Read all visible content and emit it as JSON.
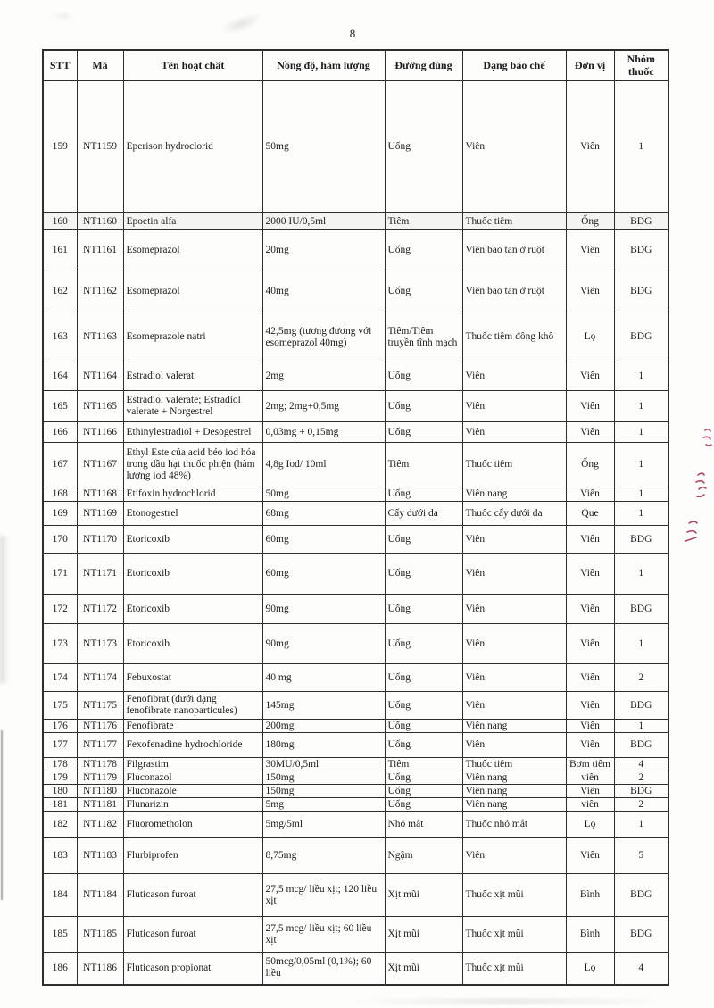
{
  "page": {
    "number": "8"
  },
  "annotations": {
    "margin_note": "illegible red handwritten pen marks",
    "red_color": "#b0436b"
  },
  "table": {
    "headers": [
      "STT",
      "Mã",
      "Tên hoạt chất",
      "Nồng độ, hàm lượng",
      "Đường dùng",
      "Dạng bào chế",
      "Đơn vị",
      "Nhóm thuốc"
    ],
    "rows": [
      {
        "stt": "159",
        "code": "NT1159",
        "name": "Eperison hydroclorid",
        "strength": "50mg",
        "route": "Uống",
        "form": "Viên",
        "unit": "Viên",
        "group": "1"
      },
      {
        "stt": "160",
        "code": "NT1160",
        "name": "Epoetin alfa",
        "strength": "2000 IU/0,5ml",
        "route": "Tiêm",
        "form": "Thuốc tiêm",
        "unit": "Ống",
        "group": "BDG"
      },
      {
        "stt": "161",
        "code": "NT1161",
        "name": "Esomeprazol",
        "strength": "20mg",
        "route": "Uống",
        "form": "Viên bao tan ở ruột",
        "unit": "Viên",
        "group": "BDG"
      },
      {
        "stt": "162",
        "code": "NT1162",
        "name": "Esomeprazol",
        "strength": "40mg",
        "route": "Uống",
        "form": "Viên bao tan ở ruột",
        "unit": "Viên",
        "group": "BDG"
      },
      {
        "stt": "163",
        "code": "NT1163",
        "name": "Esomeprazole natri",
        "strength": "42,5mg (tương đương với esomeprazol 40mg)",
        "route": "Tiêm/Tiêm truyền tĩnh mạch",
        "form": "Thuốc tiêm đông khô",
        "unit": "Lọ",
        "group": "BDG"
      },
      {
        "stt": "164",
        "code": "NT1164",
        "name": "Estradiol valerat",
        "strength": "2mg",
        "route": "Uống",
        "form": "Viên",
        "unit": "Viên",
        "group": "1"
      },
      {
        "stt": "165",
        "code": "NT1165",
        "name": "Estradiol valerate; Estradiol valerate + Norgestrel",
        "strength": "2mg; 2mg+0,5mg",
        "route": "Uống",
        "form": "Viên",
        "unit": "Viên",
        "group": "1"
      },
      {
        "stt": "166",
        "code": "NT1166",
        "name": "Ethinylestradiol + Desogestrel",
        "strength": "0,03mg + 0,15mg",
        "route": "Uống",
        "form": "Viên",
        "unit": "Viên",
        "group": "1"
      },
      {
        "stt": "167",
        "code": "NT1167",
        "name": "Ethyl Este của acid béo iod hóa trong dầu hạt thuốc phiện (hàm lượng iod 48%)",
        "strength": "4,8g Iod/ 10ml",
        "route": "Tiêm",
        "form": "Thuốc tiêm",
        "unit": "Ống",
        "group": "1"
      },
      {
        "stt": "168",
        "code": "NT1168",
        "name": "Etifoxin hydrochlorid",
        "strength": "50mg",
        "route": "Uống",
        "form": "Viên nang",
        "unit": "Viên",
        "group": "1"
      },
      {
        "stt": "169",
        "code": "NT1169",
        "name": "Etonogestrel",
        "strength": "68mg",
        "route": "Cấy dưới da",
        "form": "Thuốc cấy dưới da",
        "unit": "Que",
        "group": "1"
      },
      {
        "stt": "170",
        "code": "NT1170",
        "name": "Etoricoxib",
        "strength": "60mg",
        "route": "Uống",
        "form": "Viên",
        "unit": "Viên",
        "group": "BDG"
      },
      {
        "stt": "171",
        "code": "NT1171",
        "name": "Etoricoxib",
        "strength": "60mg",
        "route": "Uống",
        "form": "Viên",
        "unit": "Viên",
        "group": "1"
      },
      {
        "stt": "172",
        "code": "NT1172",
        "name": "Etoricoxib",
        "strength": "90mg",
        "route": "Uống",
        "form": "Viên",
        "unit": "Viên",
        "group": "BDG"
      },
      {
        "stt": "173",
        "code": "NT1173",
        "name": "Etoricoxib",
        "strength": "90mg",
        "route": "Uống",
        "form": "Viên",
        "unit": "Viên",
        "group": "1"
      },
      {
        "stt": "174",
        "code": "NT1174",
        "name": "Febuxostat",
        "strength": "40 mg",
        "route": "Uống",
        "form": "Viên",
        "unit": "Viên",
        "group": "2"
      },
      {
        "stt": "175",
        "code": "NT1175",
        "name": "Fenofibrat (dưới dạng fenofibrate nanoparticules)",
        "strength": "145mg",
        "route": "Uống",
        "form": "Viên",
        "unit": "Viên",
        "group": "BDG"
      },
      {
        "stt": "176",
        "code": "NT1176",
        "name": "Fenofibrate",
        "strength": "200mg",
        "route": "Uống",
        "form": "Viên nang",
        "unit": "Viên",
        "group": "1"
      },
      {
        "stt": "177",
        "code": "NT1177",
        "name": "Fexofenadine hydrochloride",
        "strength": "180mg",
        "route": "Uống",
        "form": "Viên",
        "unit": "Viên",
        "group": "BDG"
      },
      {
        "stt": "178",
        "code": "NT1178",
        "name": "Filgrastim",
        "strength": "30MU/0,5ml",
        "route": "Tiêm",
        "form": "Thuốc tiêm",
        "unit": "Bơm tiêm",
        "group": "4"
      },
      {
        "stt": "179",
        "code": "NT1179",
        "name": "Fluconazol",
        "strength": "150mg",
        "route": "Uống",
        "form": "Viên nang",
        "unit": "viên",
        "group": "2"
      },
      {
        "stt": "180",
        "code": "NT1180",
        "name": "Fluconazole",
        "strength": "150mg",
        "route": "Uống",
        "form": "Viên nang",
        "unit": "Viên",
        "group": "BDG"
      },
      {
        "stt": "181",
        "code": "NT1181",
        "name": "Flunarizin",
        "strength": "5mg",
        "route": "Uống",
        "form": "Viên nang",
        "unit": "viên",
        "group": "2"
      },
      {
        "stt": "182",
        "code": "NT1182",
        "name": "Fluorometholon",
        "strength": "5mg/5ml",
        "route": "Nhỏ mắt",
        "form": "Thuốc nhỏ mắt",
        "unit": "Lọ",
        "group": "1"
      },
      {
        "stt": "183",
        "code": "NT1183",
        "name": "Flurbiprofen",
        "strength": "8,75mg",
        "route": "Ngậm",
        "form": "Viên",
        "unit": "Viên",
        "group": "5"
      },
      {
        "stt": "184",
        "code": "NT1184",
        "name": "Fluticason furoat",
        "strength": "27,5 mcg/ liều xịt; 120 liều xịt",
        "route": "Xịt mũi",
        "form": "Thuốc xịt mũi",
        "unit": "Bình",
        "group": "BDG"
      },
      {
        "stt": "185",
        "code": "NT1185",
        "name": "Fluticason furoat",
        "strength": "27,5 mcg/ liều xịt; 60 liều xịt",
        "route": "Xịt mũi",
        "form": "Thuốc xịt mũi",
        "unit": "Bình",
        "group": "BDG"
      },
      {
        "stt": "186",
        "code": "NT1186",
        "name": "Fluticason propionat",
        "strength": "50mcg/0,05ml (0,1%); 60 liều",
        "route": "Xịt mũi",
        "form": "Thuốc xịt mũi",
        "unit": "Lọ",
        "group": "4"
      }
    ]
  }
}
